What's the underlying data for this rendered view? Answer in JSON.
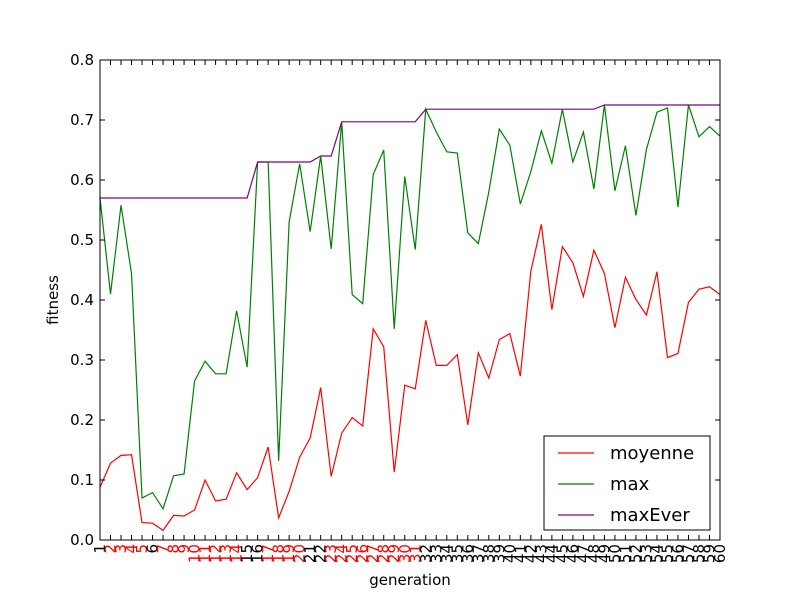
{
  "chart_data": {
    "type": "line",
    "xlabel": "generation",
    "ylabel": "fitness",
    "xlim": [
      1,
      60
    ],
    "ylim": [
      0,
      0.8
    ],
    "y_ticks": [
      "0.0",
      "0.1",
      "0.2",
      "0.3",
      "0.4",
      "0.5",
      "0.6",
      "0.7",
      "0.8"
    ],
    "x_tick_labels": [
      "1",
      "2",
      "3",
      "4",
      "5",
      "6",
      "7",
      "8",
      "9",
      "10",
      "11",
      "12",
      "13",
      "14",
      "15",
      "16",
      "17",
      "18",
      "19",
      "20",
      "21",
      "22",
      "23",
      "24",
      "25",
      "26",
      "27",
      "28",
      "29",
      "30",
      "31",
      "32",
      "33",
      "34",
      "35",
      "36",
      "37",
      "38",
      "39",
      "40",
      "41",
      "42",
      "43",
      "44",
      "45",
      "46",
      "47",
      "48",
      "49",
      "50",
      "51",
      "52",
      "53",
      "54",
      "55",
      "56",
      "57",
      "58",
      "59",
      "60"
    ],
    "x_tick_colors": [
      "#000000",
      "#ff0000",
      "#ff0000",
      "#ff0000",
      "#ff0000",
      "#000000",
      "#ff0000",
      "#ff0000",
      "#ff0000",
      "#ff0000",
      "#ff0000",
      "#ff0000",
      "#ff0000",
      "#ff0000",
      "#000000",
      "#000000",
      "#ff0000",
      "#ff0000",
      "#ff0000",
      "#ff0000",
      "#000000",
      "#000000",
      "#ff0000",
      "#ff0000",
      "#ff0000",
      "#ff0000",
      "#ff0000",
      "#ff0000",
      "#ff0000",
      "#ff0000",
      "#ff0000",
      "#000000",
      "#000000",
      "#000000",
      "#000000",
      "#000000",
      "#000000",
      "#000000",
      "#000000",
      "#000000",
      "#000000",
      "#000000",
      "#000000",
      "#000000",
      "#000000",
      "#000000",
      "#000000",
      "#000000",
      "#000000",
      "#000000",
      "#000000",
      "#000000",
      "#000000",
      "#000000",
      "#000000",
      "#000000",
      "#000000",
      "#000000",
      "#000000",
      "#000000"
    ],
    "legend_position": "lower-right",
    "grid": false,
    "series": [
      {
        "name": "moyenne",
        "color": "#ff0000",
        "values": [
          0.088,
          0.128,
          0.141,
          0.142,
          0.029,
          0.028,
          0.016,
          0.041,
          0.04,
          0.05,
          0.1,
          0.065,
          0.068,
          0.112,
          0.084,
          0.104,
          0.155,
          0.037,
          0.081,
          0.138,
          0.17,
          0.254,
          0.106,
          0.178,
          0.204,
          0.19,
          0.352,
          0.322,
          0.113,
          0.258,
          0.252,
          0.366,
          0.291,
          0.291,
          0.309,
          0.192,
          0.312,
          0.27,
          0.334,
          0.344,
          0.273,
          0.448,
          0.526,
          0.384,
          0.489,
          0.462,
          0.406,
          0.483,
          0.444,
          0.354,
          0.438,
          0.401,
          0.375,
          0.447,
          0.304,
          0.311,
          0.396,
          0.418,
          0.422,
          0.409
        ]
      },
      {
        "name": "max",
        "color": "#008000",
        "values": [
          0.57,
          0.41,
          0.558,
          0.444,
          0.07,
          0.079,
          0.052,
          0.107,
          0.11,
          0.265,
          0.298,
          0.277,
          0.277,
          0.382,
          0.288,
          0.63,
          0.63,
          0.132,
          0.53,
          0.627,
          0.514,
          0.64,
          0.485,
          0.697,
          0.409,
          0.394,
          0.609,
          0.65,
          0.352,
          0.606,
          0.484,
          0.718,
          0.68,
          0.647,
          0.645,
          0.512,
          0.494,
          0.58,
          0.685,
          0.658,
          0.56,
          0.614,
          0.682,
          0.628,
          0.718,
          0.63,
          0.68,
          0.585,
          0.725,
          0.582,
          0.657,
          0.541,
          0.651,
          0.713,
          0.72,
          0.555,
          0.725,
          0.672,
          0.689,
          0.673
        ]
      },
      {
        "name": "maxEver",
        "color": "#800080",
        "values": [
          0.57,
          0.57,
          0.57,
          0.57,
          0.57,
          0.57,
          0.57,
          0.57,
          0.57,
          0.57,
          0.57,
          0.57,
          0.57,
          0.57,
          0.57,
          0.63,
          0.63,
          0.63,
          0.63,
          0.63,
          0.63,
          0.64,
          0.64,
          0.697,
          0.697,
          0.697,
          0.697,
          0.697,
          0.697,
          0.697,
          0.697,
          0.718,
          0.718,
          0.718,
          0.718,
          0.718,
          0.718,
          0.718,
          0.718,
          0.718,
          0.718,
          0.718,
          0.718,
          0.718,
          0.718,
          0.718,
          0.718,
          0.718,
          0.725,
          0.725,
          0.725,
          0.725,
          0.725,
          0.725,
          0.725,
          0.725,
          0.725,
          0.725,
          0.725,
          0.725
        ]
      }
    ]
  }
}
